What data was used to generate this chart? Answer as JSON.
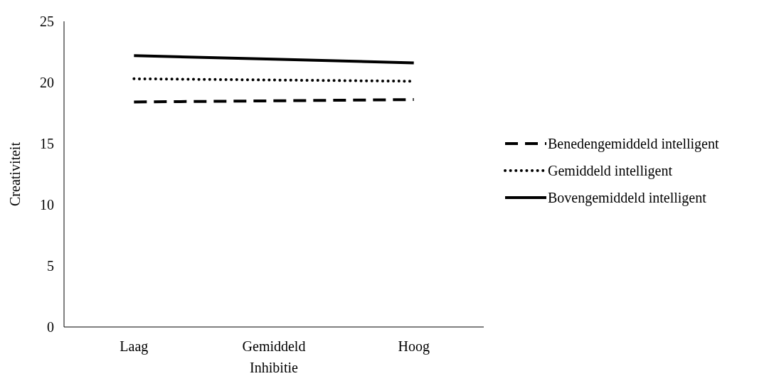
{
  "chart_data": {
    "type": "line",
    "xlabel": "Inhibitie",
    "ylabel": "Creativiteit",
    "categories": [
      "Laag",
      "Gemiddeld",
      "Hoog"
    ],
    "ylim": [
      0,
      25
    ],
    "yticks": [
      0,
      5,
      10,
      15,
      20,
      25
    ],
    "grid": false,
    "legend": "right",
    "marker": "none",
    "series": [
      {
        "name": "Benedengemiddeld intelligent",
        "color": "#000000",
        "line_style": "dashed",
        "values": [
          18.4,
          18.5,
          18.6
        ]
      },
      {
        "name": "Gemiddeld intelligent",
        "color": "#000000",
        "line_style": "dotted",
        "values": [
          20.3,
          20.2,
          20.1
        ]
      },
      {
        "name": "Bovengemiddeld intelligent",
        "color": "#000000",
        "line_style": "solid",
        "values": [
          22.2,
          21.9,
          21.6
        ]
      }
    ]
  }
}
